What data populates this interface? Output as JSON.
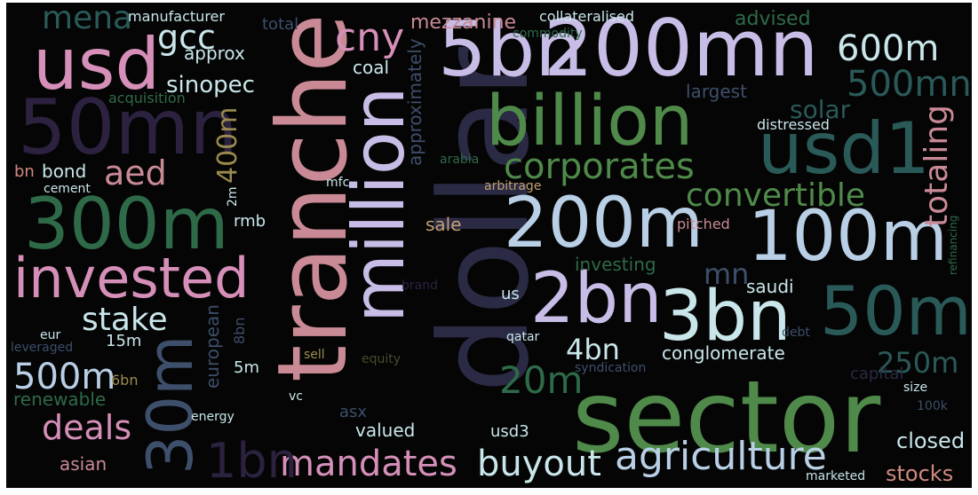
{
  "colors": {
    "background": "#050505",
    "pink": "#d58fb8",
    "rose": "#c98a96",
    "salmon": "#d08a7e",
    "lavender": "#c7bde6",
    "pale-blue": "#b8cfe6",
    "pale-cyan": "#c9e6ea",
    "green": "#4f8a4a",
    "dark-green": "#2e6a48",
    "teal": "#2a5a58",
    "slate": "#3d4f6a",
    "navy": "#2a2a44",
    "tan": "#c2a072",
    "khaki": "#9a8a4e",
    "olive": "#4a4a2e",
    "dark-violet": "#2c2240"
  },
  "words": [
    {
      "text": "sector",
      "color": "green"
    },
    {
      "text": "dollar",
      "color": "navy"
    },
    {
      "text": "tranche",
      "color": "rose"
    },
    {
      "text": "50mn",
      "color": "dark-violet"
    },
    {
      "text": "million",
      "color": "lavender"
    },
    {
      "text": "200mn",
      "color": "lavender"
    },
    {
      "text": "5bn",
      "color": "lavender"
    },
    {
      "text": "billion",
      "color": "green"
    },
    {
      "text": "usd",
      "color": "pink"
    },
    {
      "text": "usd1",
      "color": "teal"
    },
    {
      "text": "300m",
      "color": "dark-green"
    },
    {
      "text": "200m",
      "color": "pale-blue"
    },
    {
      "text": "100m",
      "color": "pale-blue"
    },
    {
      "text": "2bn",
      "color": "lavender"
    },
    {
      "text": "3bn",
      "color": "pale-cyan"
    },
    {
      "text": "50m",
      "color": "teal"
    },
    {
      "text": "invested",
      "color": "pink"
    },
    {
      "text": "30m",
      "color": "slate"
    },
    {
      "text": "corporates",
      "color": "green"
    },
    {
      "text": "agriculture",
      "color": "pale-blue"
    },
    {
      "text": "mandates",
      "color": "pink"
    },
    {
      "text": "buyout",
      "color": "pale-cyan"
    },
    {
      "text": "deals",
      "color": "pink"
    },
    {
      "text": "cny",
      "color": "pink"
    },
    {
      "text": "600m",
      "color": "pale-cyan"
    },
    {
      "text": "convertible",
      "color": "green"
    },
    {
      "text": "totaling",
      "color": "rose"
    },
    {
      "text": "500m",
      "color": "pale-blue"
    },
    {
      "text": "stake",
      "color": "pale-cyan"
    },
    {
      "text": "1bn",
      "color": "dark-violet"
    },
    {
      "text": "500mn",
      "color": "teal"
    },
    {
      "text": "mena",
      "color": "teal"
    },
    {
      "text": "gcc",
      "color": "pale-cyan"
    },
    {
      "text": "aed",
      "color": "rose"
    },
    {
      "text": "20m",
      "color": "dark-green"
    },
    {
      "text": "400m",
      "color": "khaki"
    },
    {
      "text": "250m",
      "color": "teal"
    },
    {
      "text": "4bn",
      "color": "pale-cyan"
    },
    {
      "text": "mn",
      "color": "slate"
    },
    {
      "text": "sinopec",
      "color": "pale-cyan"
    },
    {
      "text": "solar",
      "color": "teal"
    },
    {
      "text": "mezzanine",
      "color": "rose"
    },
    {
      "text": "advised",
      "color": "dark-green"
    },
    {
      "text": "approximately",
      "color": "slate"
    },
    {
      "text": "european",
      "color": "slate"
    },
    {
      "text": "investing",
      "color": "dark-green"
    },
    {
      "text": "conglomerate",
      "color": "pale-cyan"
    },
    {
      "text": "largest",
      "color": "slate"
    },
    {
      "text": "renewable",
      "color": "dark-green"
    },
    {
      "text": "closed",
      "color": "pale-cyan"
    },
    {
      "text": "stocks",
      "color": "salmon"
    },
    {
      "text": "valued",
      "color": "pale-cyan"
    },
    {
      "text": "asian",
      "color": "rose"
    },
    {
      "text": "saudi",
      "color": "pale-cyan"
    },
    {
      "text": "approx",
      "color": "pale-cyan"
    },
    {
      "text": "coal",
      "color": "pale-cyan"
    },
    {
      "text": "bond",
      "color": "pale-cyan"
    },
    {
      "text": "rmb",
      "color": "pale-cyan"
    },
    {
      "text": "sale",
      "color": "tan"
    },
    {
      "text": "asx",
      "color": "slate"
    },
    {
      "text": "usd3",
      "color": "pale-cyan"
    },
    {
      "text": "total",
      "color": "slate"
    },
    {
      "text": "bn",
      "color": "salmon"
    },
    {
      "text": "15m",
      "color": "pale-cyan"
    },
    {
      "text": "5m",
      "color": "pale-cyan"
    },
    {
      "text": "8bn",
      "color": "slate"
    },
    {
      "text": "6bn",
      "color": "khaki"
    },
    {
      "text": "distressed",
      "color": "pale-cyan"
    },
    {
      "text": "manufacturer",
      "color": "pale-cyan"
    },
    {
      "text": "collateralised",
      "color": "pale-cyan"
    },
    {
      "text": "commodity",
      "color": "dark-green"
    },
    {
      "text": "acquisition",
      "color": "dark-green"
    },
    {
      "text": "cement",
      "color": "pale-cyan"
    },
    {
      "text": "mfc",
      "color": "pale-cyan"
    },
    {
      "text": "2m",
      "color": "pale-cyan"
    },
    {
      "text": "arabia",
      "color": "dark-green"
    },
    {
      "text": "arbitrage",
      "color": "tan"
    },
    {
      "text": "pitched",
      "color": "rose"
    },
    {
      "text": "refinancing",
      "color": "dark-green"
    },
    {
      "text": "us",
      "color": "pale-cyan"
    },
    {
      "text": "brand",
      "color": "dark-violet"
    },
    {
      "text": "qatar",
      "color": "pale-cyan"
    },
    {
      "text": "eur",
      "color": "pale-cyan"
    },
    {
      "text": "leveraged",
      "color": "slate"
    },
    {
      "text": "sell",
      "color": "khaki"
    },
    {
      "text": "syndication",
      "color": "slate"
    },
    {
      "text": "debt",
      "color": "slate"
    },
    {
      "text": "size",
      "color": "pale-cyan"
    },
    {
      "text": "100k",
      "color": "slate"
    },
    {
      "text": "vc",
      "color": "pale-cyan"
    },
    {
      "text": "energy",
      "color": "pale-cyan"
    },
    {
      "text": "marketed",
      "color": "pale-cyan"
    },
    {
      "text": "capital",
      "color": "navy"
    },
    {
      "text": "equity",
      "color": "olive"
    }
  ]
}
